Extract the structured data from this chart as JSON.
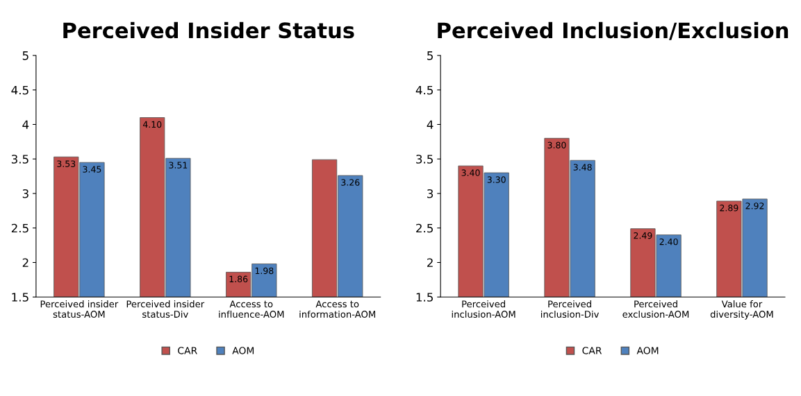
{
  "chart_data": [
    {
      "type": "bar",
      "title": "Perceived Insider Status",
      "categories": [
        "Perceived insider\nstatus-AOM",
        "Perceived insider\nstatus-Div",
        "Access to\ninfluence-AOM",
        "Access to\ninformation-AOM"
      ],
      "series": [
        {
          "name": "CAR",
          "color": "#c0504d",
          "values": [
            3.53,
            4.1,
            1.86,
            3.49
          ],
          "value_labels": [
            "3.53",
            "4.10",
            "1.86",
            null
          ]
        },
        {
          "name": "AOM",
          "color": "#4f81bd",
          "values": [
            3.45,
            3.51,
            1.98,
            3.26
          ],
          "value_labels": [
            "3.45",
            "3.51",
            "1.98",
            "3.26"
          ]
        }
      ],
      "ylim": [
        1.5,
        5
      ],
      "yticks": [
        1.5,
        2,
        2.5,
        3,
        3.5,
        4,
        4.5,
        5
      ],
      "grid": false,
      "legend": "bottom"
    },
    {
      "type": "bar",
      "title": "Perceived Inclusion/Exclusion",
      "categories": [
        "Perceived\ninclusion-AOM",
        "Perceived\ninclusion-Div",
        "Perceived\nexclusion-AOM",
        "Value for\ndiversity-AOM"
      ],
      "series": [
        {
          "name": "CAR",
          "color": "#c0504d",
          "values": [
            3.4,
            3.8,
            2.49,
            2.89
          ],
          "value_labels": [
            "3.40",
            "3.80",
            "2.49",
            "2.89"
          ]
        },
        {
          "name": "AOM",
          "color": "#4f81bd",
          "values": [
            3.3,
            3.48,
            2.4,
            2.92
          ],
          "value_labels": [
            "3.30",
            "3.48",
            "2.40",
            "2.92"
          ]
        }
      ],
      "ylim": [
        1.5,
        5
      ],
      "yticks": [
        1.5,
        2,
        2.5,
        3,
        3.5,
        4,
        4.5,
        5
      ],
      "grid": false,
      "legend": "bottom"
    }
  ]
}
